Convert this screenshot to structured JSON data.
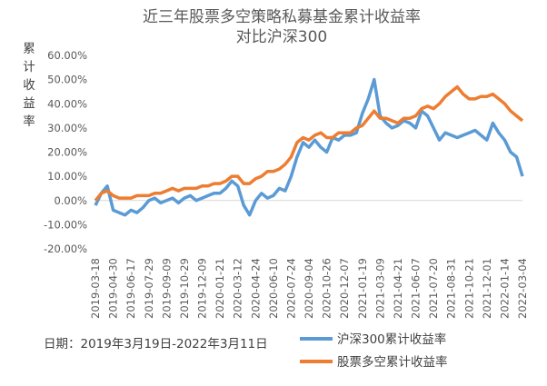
{
  "chart_data": {
    "type": "line",
    "title": "近三年股票多空策略私募基金累计收益率",
    "subtitle": "对比沪深300",
    "ylabel": "累计收益率",
    "xlabel": "",
    "ylim": [
      -0.2,
      0.6
    ],
    "yticks": [
      "60.00%",
      "50.00%",
      "40.00%",
      "30.00%",
      "20.00%",
      "10.00%",
      "0.00%",
      "-10.00%",
      "-20.00%"
    ],
    "x_ticks": [
      "2019-03-18",
      "2019-04-30",
      "2019-06-17",
      "2019-07-29",
      "2019-09-09",
      "2019-10-29",
      "2019-12-09",
      "2020-01-21",
      "2020-03-12",
      "2020-04-24",
      "2020-06-10",
      "2020-07-24",
      "2020-09-04",
      "2020-10-26",
      "2020-12-07",
      "2021-01-19",
      "2021-03-09",
      "2021-04-21",
      "2021-06-07",
      "2021-07-20",
      "2021-08-31",
      "2021-10-21",
      "2021-12-01",
      "2022-01-14",
      "2022-03-04"
    ],
    "grid": false,
    "legend_position": "bottom-right",
    "note": "日期：2019年3月19日-2022年3月11日",
    "series": [
      {
        "name": "沪深300累计收益率",
        "color": "#5b9bd5",
        "values": [
          -0.02,
          0.03,
          0.06,
          -0.04,
          -0.05,
          -0.06,
          -0.04,
          -0.05,
          -0.03,
          0.0,
          0.01,
          -0.01,
          0.0,
          0.01,
          -0.01,
          0.01,
          0.02,
          0.0,
          0.01,
          0.02,
          0.03,
          0.03,
          0.05,
          0.08,
          0.06,
          -0.02,
          -0.06,
          0.0,
          0.03,
          0.01,
          0.02,
          0.05,
          0.04,
          0.1,
          0.18,
          0.24,
          0.22,
          0.25,
          0.22,
          0.2,
          0.26,
          0.25,
          0.27,
          0.27,
          0.28,
          0.36,
          0.42,
          0.5,
          0.35,
          0.32,
          0.3,
          0.31,
          0.33,
          0.32,
          0.3,
          0.37,
          0.35,
          0.3,
          0.25,
          0.28,
          0.27,
          0.26,
          0.27,
          0.28,
          0.29,
          0.27,
          0.25,
          0.32,
          0.28,
          0.25,
          0.2,
          0.18,
          0.1
        ]
      },
      {
        "name": "股票多空累计收益率",
        "color": "#ed7d31",
        "values": [
          0.0,
          0.03,
          0.04,
          0.02,
          0.01,
          0.01,
          0.01,
          0.02,
          0.02,
          0.02,
          0.03,
          0.03,
          0.04,
          0.05,
          0.04,
          0.05,
          0.05,
          0.05,
          0.06,
          0.06,
          0.07,
          0.07,
          0.08,
          0.1,
          0.1,
          0.07,
          0.07,
          0.09,
          0.1,
          0.12,
          0.12,
          0.13,
          0.15,
          0.18,
          0.24,
          0.26,
          0.25,
          0.27,
          0.28,
          0.26,
          0.26,
          0.28,
          0.28,
          0.28,
          0.3,
          0.31,
          0.34,
          0.37,
          0.34,
          0.34,
          0.33,
          0.32,
          0.34,
          0.34,
          0.35,
          0.38,
          0.39,
          0.38,
          0.4,
          0.43,
          0.45,
          0.47,
          0.44,
          0.42,
          0.42,
          0.43,
          0.43,
          0.44,
          0.42,
          0.4,
          0.37,
          0.35,
          0.33
        ]
      }
    ]
  }
}
